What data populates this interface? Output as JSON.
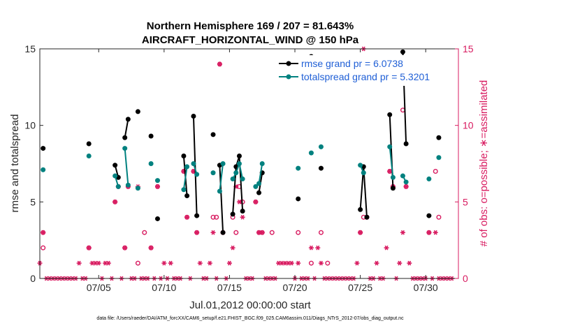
{
  "chart_data": {
    "type": "line",
    "title": "Northern Hemisphere 169 / 207 = 81.643%",
    "subtitle": "AIRCRAFT_HORIZONTAL_WIND @ 150 hPa",
    "xlabel": "Jul.01,2012 00:00:00 start",
    "ylabel_left": "rmse and totalspread",
    "ylabel_right": "# of obs: o=possible; ∗=assimilated",
    "xlim": [
      0.5,
      32.5
    ],
    "ylim": [
      0,
      15
    ],
    "yticks": [
      0,
      5,
      10,
      15
    ],
    "xticks": [
      {
        "x": 5,
        "label": "07/05"
      },
      {
        "x": 10,
        "label": "07/10"
      },
      {
        "x": 15,
        "label": "07/15"
      },
      {
        "x": 20,
        "label": "07/20"
      },
      {
        "x": 25,
        "label": "07/25"
      },
      {
        "x": 30,
        "label": "07/30"
      }
    ],
    "legend": {
      "location": "top-right",
      "entries": [
        "rmse grand pr = 6.0738",
        "totalspread grand pr = 5.3201"
      ]
    },
    "colors": {
      "rmse": "#000000",
      "spread": "#00817f",
      "obs": "#d81b60",
      "legend_text": "#1f5fd6"
    },
    "series": [
      {
        "name": "rmse",
        "points": [
          [
            0.75,
            8.5
          ],
          [
            4.25,
            8.8
          ],
          [
            6.25,
            7.4
          ],
          [
            6.5,
            6.6
          ],
          [
            7.0,
            9.2
          ],
          [
            7.25,
            10.4
          ],
          [
            8.0,
            10.9
          ],
          [
            9.0,
            9.3
          ],
          [
            9.5,
            3.9
          ],
          [
            11.5,
            8.0
          ],
          [
            11.75,
            5.4
          ],
          [
            12.25,
            10.6
          ],
          [
            12.5,
            4.1
          ],
          [
            13.75,
            9.4
          ],
          [
            14.25,
            7.4
          ],
          [
            14.5,
            3.0
          ],
          [
            15.25,
            4.2
          ],
          [
            15.5,
            7.3
          ],
          [
            15.75,
            8.0
          ],
          [
            16.0,
            4.4
          ],
          [
            17.25,
            5.6
          ],
          [
            17.5,
            6.9
          ],
          [
            20.25,
            5.2
          ],
          [
            21.25,
            14.5
          ],
          [
            22.0,
            7.2
          ],
          [
            25.0,
            4.5
          ],
          [
            25.25,
            7.3
          ],
          [
            25.5,
            4.0
          ],
          [
            27.25,
            10.7
          ],
          [
            27.5,
            5.9
          ],
          [
            28.25,
            14.8
          ],
          [
            28.5,
            8.8
          ],
          [
            30.25,
            4.1
          ],
          [
            31.0,
            9.2
          ]
        ]
      },
      {
        "name": "totalspread",
        "points": [
          [
            0.75,
            7.1
          ],
          [
            4.25,
            8.0
          ],
          [
            6.25,
            6.7
          ],
          [
            6.5,
            6.0
          ],
          [
            7.0,
            8.5
          ],
          [
            7.25,
            6.1
          ],
          [
            8.0,
            5.9
          ],
          [
            9.0,
            7.5
          ],
          [
            9.5,
            6.4
          ],
          [
            11.5,
            5.8
          ],
          [
            11.75,
            7.3
          ],
          [
            12.25,
            7.5
          ],
          [
            12.5,
            6.8
          ],
          [
            13.75,
            6.9
          ],
          [
            14.25,
            5.7
          ],
          [
            14.5,
            7.5
          ],
          [
            15.25,
            6.5
          ],
          [
            15.5,
            6.9
          ],
          [
            15.75,
            7.5
          ],
          [
            16.0,
            6.5
          ],
          [
            17.0,
            6.0
          ],
          [
            17.25,
            6.2
          ],
          [
            17.5,
            7.5
          ],
          [
            20.25,
            7.2
          ],
          [
            21.25,
            8.2
          ],
          [
            22.0,
            8.6
          ],
          [
            25.0,
            7.4
          ],
          [
            25.25,
            6.9
          ],
          [
            27.25,
            8.6
          ],
          [
            27.5,
            6.6
          ],
          [
            28.25,
            6.7
          ],
          [
            28.5,
            6.3
          ],
          [
            30.25,
            6.5
          ],
          [
            31.0,
            7.9
          ]
        ]
      }
    ],
    "obs_possible": [
      [
        0.75,
        2
      ],
      [
        0.75,
        3
      ],
      [
        4.25,
        2
      ],
      [
        6.25,
        5
      ],
      [
        6.5,
        6
      ],
      [
        7.0,
        2
      ],
      [
        7.25,
        6
      ],
      [
        8.0,
        1
      ],
      [
        8.5,
        3
      ],
      [
        9.0,
        2
      ],
      [
        9.5,
        6
      ],
      [
        11.5,
        7
      ],
      [
        11.75,
        4
      ],
      [
        12.25,
        7
      ],
      [
        12.5,
        3
      ],
      [
        13.75,
        4
      ],
      [
        14.0,
        4
      ],
      [
        14.25,
        14
      ],
      [
        14.5,
        3
      ],
      [
        15.25,
        4
      ],
      [
        15.5,
        3
      ],
      [
        15.75,
        6
      ],
      [
        16.0,
        5
      ],
      [
        17.0,
        5
      ],
      [
        17.25,
        3
      ],
      [
        17.5,
        3
      ],
      [
        18.25,
        3
      ],
      [
        20.25,
        3
      ],
      [
        21.25,
        1
      ],
      [
        22.0,
        3
      ],
      [
        22.5,
        1
      ],
      [
        25.0,
        3
      ],
      [
        25.25,
        4
      ],
      [
        25.5,
        4
      ],
      [
        27.25,
        7
      ],
      [
        27.5,
        6
      ],
      [
        28.25,
        11
      ],
      [
        28.5,
        6
      ],
      [
        30.25,
        3
      ],
      [
        30.75,
        7
      ],
      [
        31.0,
        4
      ]
    ],
    "obs_assimilated": [
      [
        0.5,
        1
      ],
      [
        0.75,
        3
      ],
      [
        1.0,
        0
      ],
      [
        1.25,
        0
      ],
      [
        1.5,
        0
      ],
      [
        1.75,
        0
      ],
      [
        2.0,
        0
      ],
      [
        2.25,
        0
      ],
      [
        2.5,
        0
      ],
      [
        2.75,
        0
      ],
      [
        3.0,
        0
      ],
      [
        3.25,
        0
      ],
      [
        3.5,
        1
      ],
      [
        3.75,
        0
      ],
      [
        4.0,
        0
      ],
      [
        4.25,
        2
      ],
      [
        4.5,
        1
      ],
      [
        4.75,
        1
      ],
      [
        5.0,
        1
      ],
      [
        5.25,
        0
      ],
      [
        5.5,
        1
      ],
      [
        5.75,
        1
      ],
      [
        6.0,
        0
      ],
      [
        6.25,
        5
      ],
      [
        6.5,
        6
      ],
      [
        6.75,
        0
      ],
      [
        7.0,
        2
      ],
      [
        7.25,
        6
      ],
      [
        7.5,
        0
      ],
      [
        7.75,
        0
      ],
      [
        8.0,
        6
      ],
      [
        8.25,
        0
      ],
      [
        8.5,
        0
      ],
      [
        8.75,
        0
      ],
      [
        9.0,
        2
      ],
      [
        9.25,
        0
      ],
      [
        9.5,
        6
      ],
      [
        9.75,
        0
      ],
      [
        10.0,
        1
      ],
      [
        10.25,
        0
      ],
      [
        10.5,
        1
      ],
      [
        10.75,
        0
      ],
      [
        11.0,
        0
      ],
      [
        11.25,
        0
      ],
      [
        11.5,
        7
      ],
      [
        11.75,
        4
      ],
      [
        12.0,
        0
      ],
      [
        12.25,
        7
      ],
      [
        12.5,
        3
      ],
      [
        12.75,
        1
      ],
      [
        13.0,
        0
      ],
      [
        13.25,
        0
      ],
      [
        13.5,
        1
      ],
      [
        13.75,
        3
      ],
      [
        14.0,
        0
      ],
      [
        14.25,
        14
      ],
      [
        14.5,
        3
      ],
      [
        14.75,
        0
      ],
      [
        15.0,
        1
      ],
      [
        15.25,
        2
      ],
      [
        15.5,
        6
      ],
      [
        15.75,
        5
      ],
      [
        16.0,
        4
      ],
      [
        16.25,
        0
      ],
      [
        16.5,
        0
      ],
      [
        16.75,
        0
      ],
      [
        17.0,
        5
      ],
      [
        17.25,
        3
      ],
      [
        17.5,
        3
      ],
      [
        17.75,
        0
      ],
      [
        18.0,
        0
      ],
      [
        18.25,
        0
      ],
      [
        18.5,
        0
      ],
      [
        18.75,
        1
      ],
      [
        19.0,
        1
      ],
      [
        19.25,
        1
      ],
      [
        19.5,
        1
      ],
      [
        19.75,
        1
      ],
      [
        20.0,
        0
      ],
      [
        20.25,
        1
      ],
      [
        20.5,
        0
      ],
      [
        20.75,
        0
      ],
      [
        21.0,
        0
      ],
      [
        21.25,
        2
      ],
      [
        21.5,
        0
      ],
      [
        21.75,
        2
      ],
      [
        22.0,
        1
      ],
      [
        22.25,
        0
      ],
      [
        22.5,
        0
      ],
      [
        22.75,
        0
      ],
      [
        23.0,
        0
      ],
      [
        23.25,
        0
      ],
      [
        23.5,
        0
      ],
      [
        23.75,
        0
      ],
      [
        24.0,
        0
      ],
      [
        24.25,
        0
      ],
      [
        24.5,
        0
      ],
      [
        24.75,
        1
      ],
      [
        25.0,
        3
      ],
      [
        25.25,
        15
      ],
      [
        25.5,
        4
      ],
      [
        25.75,
        0
      ],
      [
        26.0,
        0
      ],
      [
        26.25,
        1
      ],
      [
        26.5,
        0
      ],
      [
        26.75,
        0
      ],
      [
        27.0,
        2
      ],
      [
        27.25,
        7
      ],
      [
        27.5,
        6
      ],
      [
        27.75,
        0
      ],
      [
        28.0,
        1
      ],
      [
        28.25,
        3
      ],
      [
        28.5,
        6
      ],
      [
        28.75,
        1
      ],
      [
        29.0,
        0
      ],
      [
        29.25,
        0
      ],
      [
        29.5,
        0
      ],
      [
        29.75,
        0
      ],
      [
        30.0,
        0
      ],
      [
        30.25,
        3
      ],
      [
        30.5,
        0
      ],
      [
        30.75,
        3
      ],
      [
        31.0,
        0
      ],
      [
        31.25,
        0
      ],
      [
        31.5,
        0
      ],
      [
        31.75,
        0
      ],
      [
        32.0,
        0
      ]
    ]
  },
  "footer": "data file: /Users/raeder/DAI/ATM_forcXX/CAM6_setup/f.e21.FHIST_BGC.f09_025.CAM6assim.011/Diags_NTrS_2012-07/obs_diag_output.nc"
}
